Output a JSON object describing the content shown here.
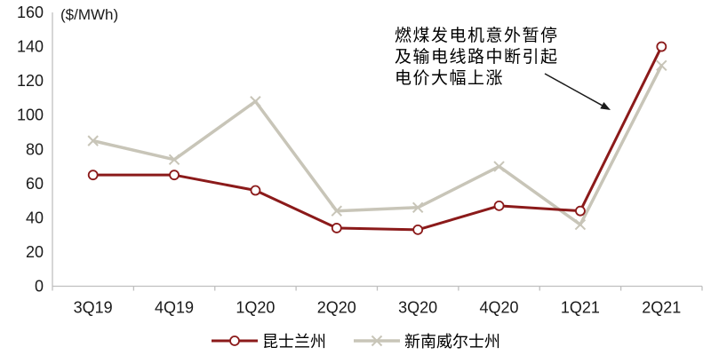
{
  "chart_data": {
    "type": "line",
    "title": "",
    "ylabel": "($/MWh)",
    "xlabel": "",
    "categories": [
      "3Q19",
      "4Q19",
      "1Q20",
      "2Q20",
      "3Q20",
      "4Q20",
      "1Q21",
      "2Q21"
    ],
    "series": [
      {
        "id": "qld",
        "name": "昆士兰州",
        "color": "#8B1A1A",
        "marker": "circle",
        "values": [
          65,
          65,
          56,
          34,
          33,
          47,
          44,
          140
        ]
      },
      {
        "id": "nsw",
        "name": "新南威尔士州",
        "color": "#C8C5B8",
        "marker": "x",
        "values": [
          85,
          74,
          108,
          44,
          46,
          70,
          36,
          129
        ]
      }
    ],
    "ylim": [
      0,
      160
    ],
    "ytick_step": 20,
    "grid": false,
    "legend_position": "bottom",
    "axis_color": "#BFBFBF",
    "text_color": "#1a1a1a",
    "annotation": {
      "lines": [
        "燃煤发电机意外暂停",
        "及输电线路中断引起",
        "电价大幅上涨"
      ]
    }
  }
}
